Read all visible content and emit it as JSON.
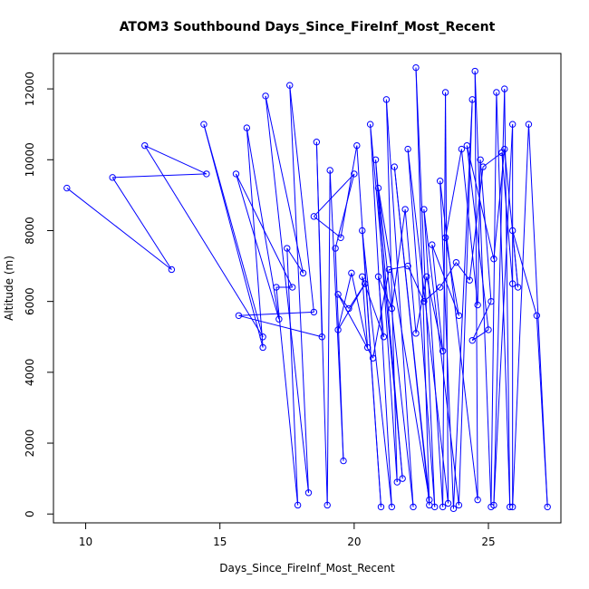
{
  "chart_data": {
    "type": "scatter",
    "connected": true,
    "title": "ATOM3 Southbound Days_Since_FireInf_Most_Recent",
    "xlabel": "Days_Since_FireInf_Most_Recent",
    "ylabel": "Altitude (m)",
    "xlim": [
      8.8,
      27.7
    ],
    "ylim": [
      -250,
      13000
    ],
    "x_ticks": [
      10,
      15,
      20,
      25
    ],
    "y_ticks": [
      0,
      2000,
      4000,
      6000,
      8000,
      10000,
      12000
    ],
    "grid": false,
    "series_color": "#0000ff",
    "series": [
      {
        "points": [
          [
            9.3,
            9200
          ],
          [
            13.2,
            6900
          ],
          [
            11.0,
            9500
          ],
          [
            14.5,
            9600
          ],
          [
            12.2,
            10400
          ],
          [
            16.6,
            5000
          ],
          [
            14.4,
            11000
          ],
          [
            16.6,
            4700
          ],
          [
            16.0,
            10900
          ],
          [
            17.2,
            5500
          ],
          [
            15.6,
            9600
          ],
          [
            17.7,
            6400
          ],
          [
            17.1,
            6400
          ],
          [
            17.9,
            250
          ],
          [
            17.5,
            7500
          ],
          [
            18.1,
            6800
          ],
          [
            16.7,
            11800
          ],
          [
            18.3,
            600
          ],
          [
            17.6,
            12100
          ],
          [
            18.5,
            5700
          ],
          [
            15.7,
            5600
          ],
          [
            18.8,
            5000
          ],
          [
            18.6,
            10500
          ],
          [
            19.0,
            250
          ],
          [
            19.1,
            9700
          ],
          [
            19.6,
            1500
          ],
          [
            19.3,
            7500
          ],
          [
            20.0,
            9600
          ],
          [
            18.5,
            8400
          ],
          [
            19.5,
            7800
          ],
          [
            20.1,
            10400
          ],
          [
            21.0,
            200
          ],
          [
            20.3,
            8000
          ],
          [
            21.4,
            200
          ],
          [
            20.6,
            11000
          ],
          [
            21.8,
            1000
          ],
          [
            20.8,
            10000
          ],
          [
            21.6,
            900
          ],
          [
            21.2,
            11700
          ],
          [
            22.2,
            200
          ],
          [
            20.9,
            9200
          ],
          [
            22.8,
            400
          ],
          [
            21.5,
            9800
          ],
          [
            22.8,
            250
          ],
          [
            22.3,
            12600
          ],
          [
            23.0,
            200
          ],
          [
            22.0,
            10300
          ],
          [
            23.5,
            300
          ],
          [
            23.4,
            11900
          ],
          [
            23.3,
            200
          ],
          [
            22.6,
            8600
          ],
          [
            23.9,
            250
          ],
          [
            24.4,
            11700
          ],
          [
            23.7,
            150
          ],
          [
            23.2,
            9400
          ],
          [
            24.6,
            400
          ],
          [
            24.5,
            12500
          ],
          [
            25.1,
            200
          ],
          [
            25.3,
            11900
          ],
          [
            25.8,
            200
          ],
          [
            25.6,
            12000
          ],
          [
            25.2,
            250
          ],
          [
            25.9,
            11000
          ],
          [
            25.9,
            200
          ],
          [
            26.5,
            11000
          ],
          [
            27.2,
            200
          ],
          [
            26.8,
            5600
          ],
          [
            25.9,
            8000
          ],
          [
            26.1,
            6400
          ],
          [
            25.6,
            10300
          ],
          [
            25.2,
            7200
          ],
          [
            24.2,
            10400
          ],
          [
            25.0,
            5200
          ],
          [
            24.4,
            4900
          ],
          [
            25.1,
            6000
          ],
          [
            24.7,
            10000
          ],
          [
            24.6,
            5900
          ],
          [
            24.0,
            10300
          ],
          [
            23.4,
            7800
          ],
          [
            23.9,
            5600
          ],
          [
            22.9,
            7600
          ],
          [
            23.3,
            4600
          ],
          [
            22.7,
            6700
          ],
          [
            22.3,
            5100
          ],
          [
            21.9,
            8600
          ],
          [
            21.4,
            5800
          ],
          [
            20.9,
            6700
          ],
          [
            21.1,
            5000
          ],
          [
            20.3,
            6700
          ],
          [
            20.5,
            4700
          ],
          [
            19.9,
            6800
          ],
          [
            19.4,
            5200
          ],
          [
            20.4,
            6500
          ],
          [
            19.8,
            5800
          ],
          [
            19.4,
            6200
          ],
          [
            20.7,
            4400
          ],
          [
            21.3,
            6900
          ],
          [
            22.0,
            7000
          ],
          [
            22.6,
            6000
          ],
          [
            23.2,
            6400
          ],
          [
            23.8,
            7100
          ],
          [
            24.3,
            6600
          ],
          [
            24.8,
            9800
          ],
          [
            25.5,
            10200
          ],
          [
            25.9,
            6500
          ]
        ]
      }
    ]
  }
}
